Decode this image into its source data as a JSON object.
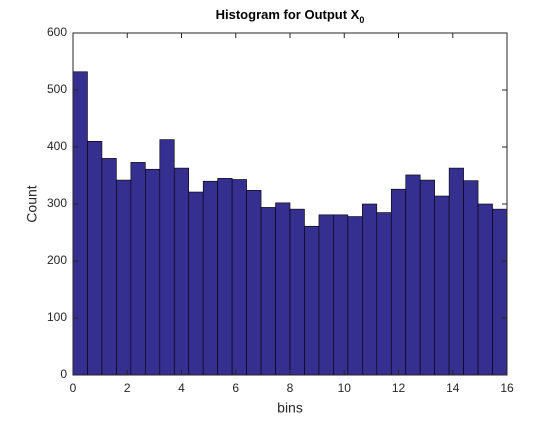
{
  "chart_data": {
    "type": "histogram",
    "title": "Histogram for Output X",
    "title_subscript": "0",
    "xlabel": "bins",
    "ylabel": "Count",
    "color": "#352f8f",
    "edgecolor": "#000000",
    "bins": [
      0,
      0.5333,
      1.0667,
      1.6,
      2.1333,
      2.6667,
      3.2,
      3.7333,
      4.2667,
      4.8,
      5.3333,
      5.8667,
      6.4,
      6.9333,
      7.4667,
      8,
      8.5333,
      9.0667,
      9.6,
      10.1333,
      10.6667,
      11.2,
      11.7333,
      12.2667,
      12.8,
      13.3333,
      13.8667,
      14.4,
      14.9333,
      15.4667,
      16
    ],
    "counts": [
      532,
      410,
      380,
      342,
      373,
      361,
      413,
      363,
      321,
      340,
      345,
      343,
      324,
      294,
      302,
      291,
      261,
      281,
      281,
      278,
      300,
      285,
      326,
      351,
      342,
      314,
      363,
      341,
      300,
      291
    ],
    "xlim": [
      0,
      16
    ],
    "xticks": [
      0,
      2,
      4,
      6,
      8,
      10,
      12,
      14,
      16
    ],
    "ylim": [
      0,
      600
    ],
    "yticks": [
      0,
      100,
      200,
      300,
      400,
      500,
      600
    ]
  }
}
